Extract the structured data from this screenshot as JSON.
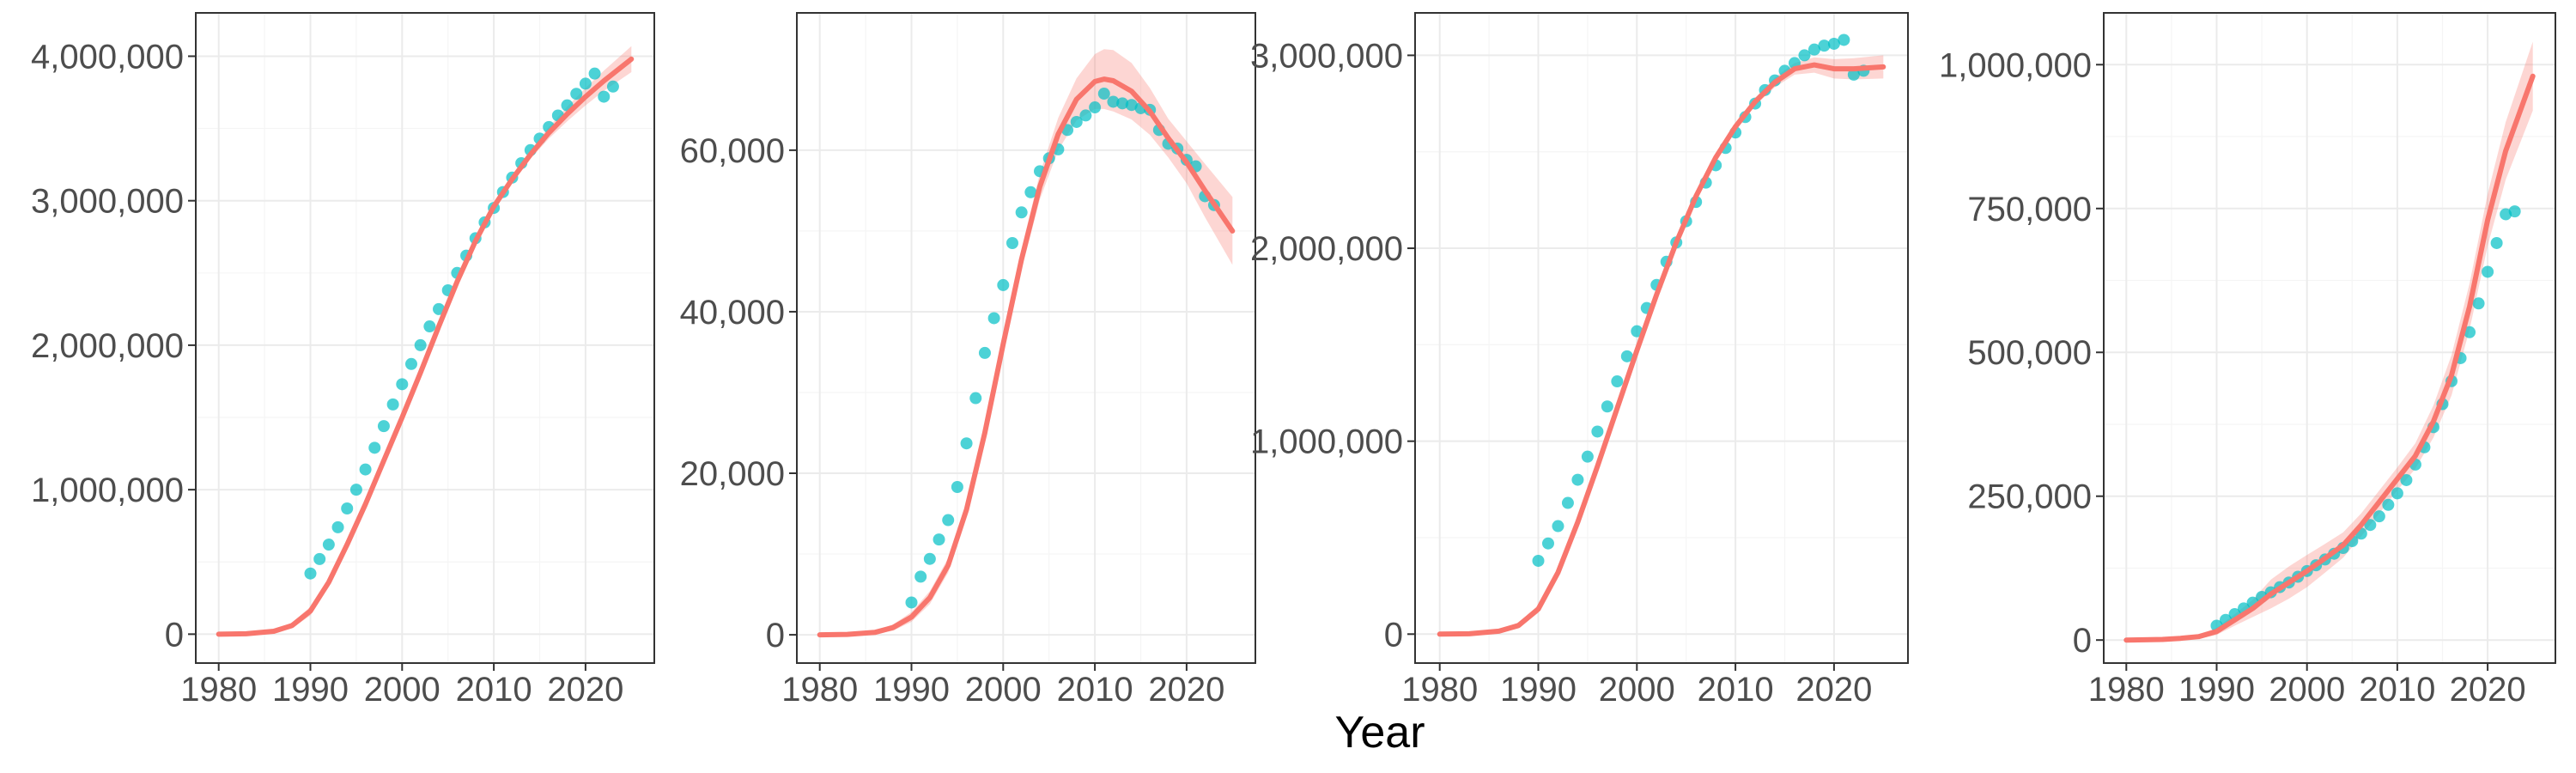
{
  "figure": {
    "xlabel": "Year"
  },
  "colors": {
    "fit_line": "#F8766D",
    "ribbon": "#F8766D",
    "points": "#00BFC4",
    "grid_major": "#EBEBEB",
    "grid_minor": "#F5F5F5",
    "panel_border": "#333333",
    "text": "#4D4D4D"
  },
  "chart_data": [
    {
      "type": "scatter",
      "xlim": [
        1977.5,
        2027.5
      ],
      "ylim": [
        -200000,
        4300000
      ],
      "xticks": [
        1980,
        1990,
        2000,
        2010,
        2020
      ],
      "yticks": [
        0,
        1000000,
        2000000,
        3000000,
        4000000
      ],
      "ytick_labels": [
        "0",
        "1,000,000",
        "2,000,000",
        "3,000,000",
        "4,000,000"
      ],
      "grid": true,
      "points": {
        "x": [
          1990,
          1991,
          1992,
          1993,
          1994,
          1995,
          1996,
          1997,
          1998,
          1999,
          2000,
          2001,
          2002,
          2003,
          2004,
          2005,
          2006,
          2007,
          2008,
          2009,
          2010,
          2011,
          2012,
          2013,
          2014,
          2015,
          2016,
          2017,
          2018,
          2019,
          2020,
          2021,
          2022,
          2023
        ],
        "y": [
          420000,
          520000,
          620000,
          740000,
          870000,
          1000000,
          1140000,
          1290000,
          1440000,
          1590000,
          1730000,
          1870000,
          2000000,
          2130000,
          2250000,
          2380000,
          2500000,
          2620000,
          2740000,
          2850000,
          2950000,
          3060000,
          3160000,
          3260000,
          3350000,
          3430000,
          3510000,
          3590000,
          3660000,
          3740000,
          3810000,
          3880000,
          3720000,
          3790000
        ]
      },
      "fit": {
        "x": [
          1980,
          1983,
          1986,
          1988,
          1990,
          1992,
          1994,
          1996,
          1998,
          2000,
          2002,
          2004,
          2006,
          2008,
          2010,
          2012,
          2014,
          2016,
          2018,
          2020,
          2022,
          2025
        ],
        "y": [
          0,
          3000,
          20000,
          60000,
          160000,
          360000,
          620000,
          900000,
          1200000,
          1500000,
          1810000,
          2130000,
          2440000,
          2720000,
          2960000,
          3150000,
          3320000,
          3470000,
          3600000,
          3720000,
          3830000,
          3980000
        ],
        "band": [
          0,
          2000,
          10000,
          20000,
          30000,
          30000,
          30000,
          30000,
          30000,
          30000,
          30000,
          30000,
          30000,
          30000,
          30000,
          30000,
          30000,
          40000,
          50000,
          60000,
          70000,
          90000
        ]
      }
    },
    {
      "type": "scatter",
      "xlim": [
        1977.5,
        2027.5
      ],
      "ylim": [
        -3500,
        77000
      ],
      "xticks": [
        1980,
        1990,
        2000,
        2010,
        2020
      ],
      "yticks": [
        0,
        20000,
        40000,
        60000
      ],
      "ytick_labels": [
        "0",
        "20,000",
        "40,000",
        "60,000"
      ],
      "grid": true,
      "points": {
        "x": [
          1990,
          1991,
          1992,
          1993,
          1994,
          1995,
          1996,
          1997,
          1998,
          1999,
          2000,
          2001,
          2002,
          2003,
          2004,
          2005,
          2006,
          2007,
          2008,
          2009,
          2010,
          2011,
          2012,
          2013,
          2014,
          2015,
          2016,
          2017,
          2018,
          2019,
          2020,
          2021,
          2022,
          2023
        ],
        "y": [
          4000,
          7200,
          9400,
          11800,
          14200,
          18300,
          23700,
          29300,
          34900,
          39200,
          43300,
          48500,
          52300,
          54800,
          57400,
          59000,
          60100,
          62500,
          63500,
          64300,
          65300,
          67000,
          66000,
          65800,
          65600,
          65200,
          65000,
          62500,
          60800,
          60200,
          58800,
          58000,
          54300,
          53200
        ]
      },
      "fit": {
        "x": [
          1980,
          1983,
          1986,
          1988,
          1990,
          1992,
          1994,
          1996,
          1998,
          2000,
          2002,
          2004,
          2006,
          2008,
          2010,
          2011,
          2012,
          2014,
          2016,
          2018,
          2020,
          2022,
          2025
        ],
        "y": [
          0,
          50,
          300,
          900,
          2200,
          4600,
          8600,
          15500,
          25000,
          36000,
          46500,
          55500,
          62000,
          66300,
          68500,
          68800,
          68600,
          67300,
          64800,
          61500,
          58500,
          55000,
          50000
        ],
        "band": [
          0,
          50,
          200,
          400,
          600,
          800,
          900,
          900,
          1000,
          1100,
          1300,
          1600,
          2000,
          2600,
          3400,
          3700,
          3800,
          3500,
          2900,
          2400,
          2600,
          3300,
          4200
        ]
      }
    },
    {
      "type": "scatter",
      "xlim": [
        1977.5,
        2027.5
      ],
      "ylim": [
        -150000,
        3220000
      ],
      "xticks": [
        1980,
        1990,
        2000,
        2010,
        2020
      ],
      "yticks": [
        0,
        1000000,
        2000000,
        3000000
      ],
      "ytick_labels": [
        "0",
        "1,000,000",
        "2,000,000",
        "3,000,000"
      ],
      "grid": true,
      "points": {
        "x": [
          1990,
          1991,
          1992,
          1993,
          1994,
          1995,
          1996,
          1997,
          1998,
          1999,
          2000,
          2001,
          2002,
          2003,
          2004,
          2005,
          2006,
          2007,
          2008,
          2009,
          2010,
          2011,
          2012,
          2013,
          2014,
          2015,
          2016,
          2017,
          2018,
          2019,
          2020,
          2021,
          2022,
          2023
        ],
        "y": [
          380000,
          470000,
          560000,
          680000,
          800000,
          920000,
          1050000,
          1180000,
          1310000,
          1440000,
          1570000,
          1690000,
          1810000,
          1930000,
          2030000,
          2140000,
          2240000,
          2340000,
          2430000,
          2520000,
          2600000,
          2680000,
          2750000,
          2820000,
          2870000,
          2920000,
          2960000,
          3000000,
          3030000,
          3050000,
          3060000,
          3080000,
          2900000,
          2920000
        ]
      },
      "fit": {
        "x": [
          1980,
          1983,
          1986,
          1988,
          1990,
          1992,
          1994,
          1996,
          1998,
          2000,
          2002,
          2004,
          2006,
          2008,
          2010,
          2012,
          2014,
          2016,
          2018,
          2020,
          2022,
          2025
        ],
        "y": [
          0,
          2000,
          15000,
          45000,
          130000,
          320000,
          580000,
          870000,
          1170000,
          1470000,
          1760000,
          2030000,
          2270000,
          2470000,
          2630000,
          2760000,
          2860000,
          2930000,
          2950000,
          2930000,
          2930000,
          2940000
        ],
        "band": [
          0,
          2000,
          10000,
          15000,
          20000,
          20000,
          20000,
          20000,
          20000,
          20000,
          20000,
          20000,
          20000,
          20000,
          20000,
          20000,
          25000,
          30000,
          40000,
          50000,
          55000,
          60000
        ]
      }
    },
    {
      "type": "scatter",
      "xlim": [
        1977.5,
        2027.5
      ],
      "ylim": [
        -40000,
        1090000
      ],
      "xticks": [
        1980,
        1990,
        2000,
        2010,
        2020
      ],
      "yticks": [
        0,
        250000,
        500000,
        750000,
        1000000
      ],
      "ytick_labels": [
        "0",
        "250,000",
        "500,000",
        "750,000",
        "1,000,000"
      ],
      "grid": true,
      "points": {
        "x": [
          1990,
          1991,
          1992,
          1993,
          1994,
          1995,
          1996,
          1997,
          1998,
          1999,
          2000,
          2001,
          2002,
          2003,
          2004,
          2005,
          2006,
          2007,
          2008,
          2009,
          2010,
          2011,
          2012,
          2013,
          2014,
          2015,
          2016,
          2017,
          2018,
          2019,
          2020,
          2021,
          2022,
          2023
        ],
        "y": [
          25000,
          35000,
          45000,
          55000,
          65000,
          75000,
          83000,
          92000,
          100000,
          110000,
          120000,
          130000,
          140000,
          150000,
          160000,
          172000,
          185000,
          200000,
          215000,
          235000,
          255000,
          278000,
          305000,
          335000,
          370000,
          410000,
          450000,
          490000,
          535000,
          585000,
          640000,
          690000,
          740000,
          745000
        ]
      },
      "fit": {
        "x": [
          1980,
          1984,
          1986,
          1988,
          1990,
          1992,
          1994,
          1996,
          1998,
          2000,
          2002,
          2004,
          2006,
          2008,
          2010,
          2012,
          2014,
          2016,
          2018,
          2020,
          2022,
          2025
        ],
        "y": [
          0,
          1000,
          3000,
          6000,
          15000,
          35000,
          55000,
          80000,
          100000,
          120000,
          142000,
          165000,
          200000,
          240000,
          280000,
          320000,
          380000,
          460000,
          580000,
          730000,
          850000,
          980000
        ],
        "band": [
          0,
          1000,
          2000,
          4000,
          6000,
          10000,
          15000,
          25000,
          28000,
          28000,
          25000,
          22000,
          20000,
          20000,
          20000,
          22000,
          28000,
          35000,
          40000,
          45000,
          50000,
          60000
        ]
      }
    }
  ]
}
